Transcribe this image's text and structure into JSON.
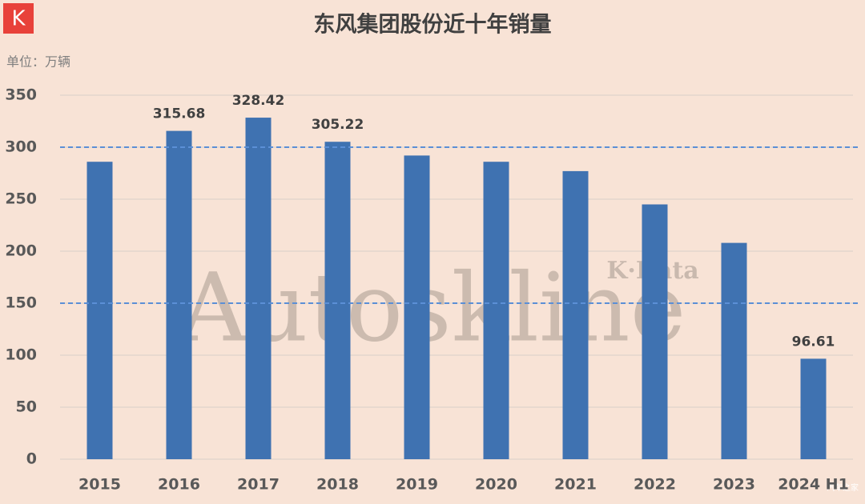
{
  "chart_data": {
    "type": "bar",
    "title": "东风集团股份近十年销量",
    "unit_label": "单位：万辆",
    "logo": "K",
    "watermark": "Autoskline",
    "watermark_sub": "K·Data",
    "source": "汽车之家",
    "categories": [
      "2015",
      "2016",
      "2017",
      "2018",
      "2019",
      "2020",
      "2021",
      "2022",
      "2023",
      "2024 H1"
    ],
    "values": [
      286,
      315.68,
      328.42,
      305.22,
      292,
      286,
      277,
      245,
      208,
      96.61
    ],
    "value_labels": [
      null,
      "315.68",
      "328.42",
      "305.22",
      null,
      null,
      null,
      null,
      null,
      "96.61"
    ],
    "color": "#3f72b1",
    "ylim": [
      0,
      350
    ],
    "yticks": [
      0,
      50,
      100,
      150,
      200,
      250,
      300,
      350
    ],
    "grid": true,
    "reference_lines": [
      300,
      150
    ],
    "reference_color": "#5b8fd6"
  }
}
